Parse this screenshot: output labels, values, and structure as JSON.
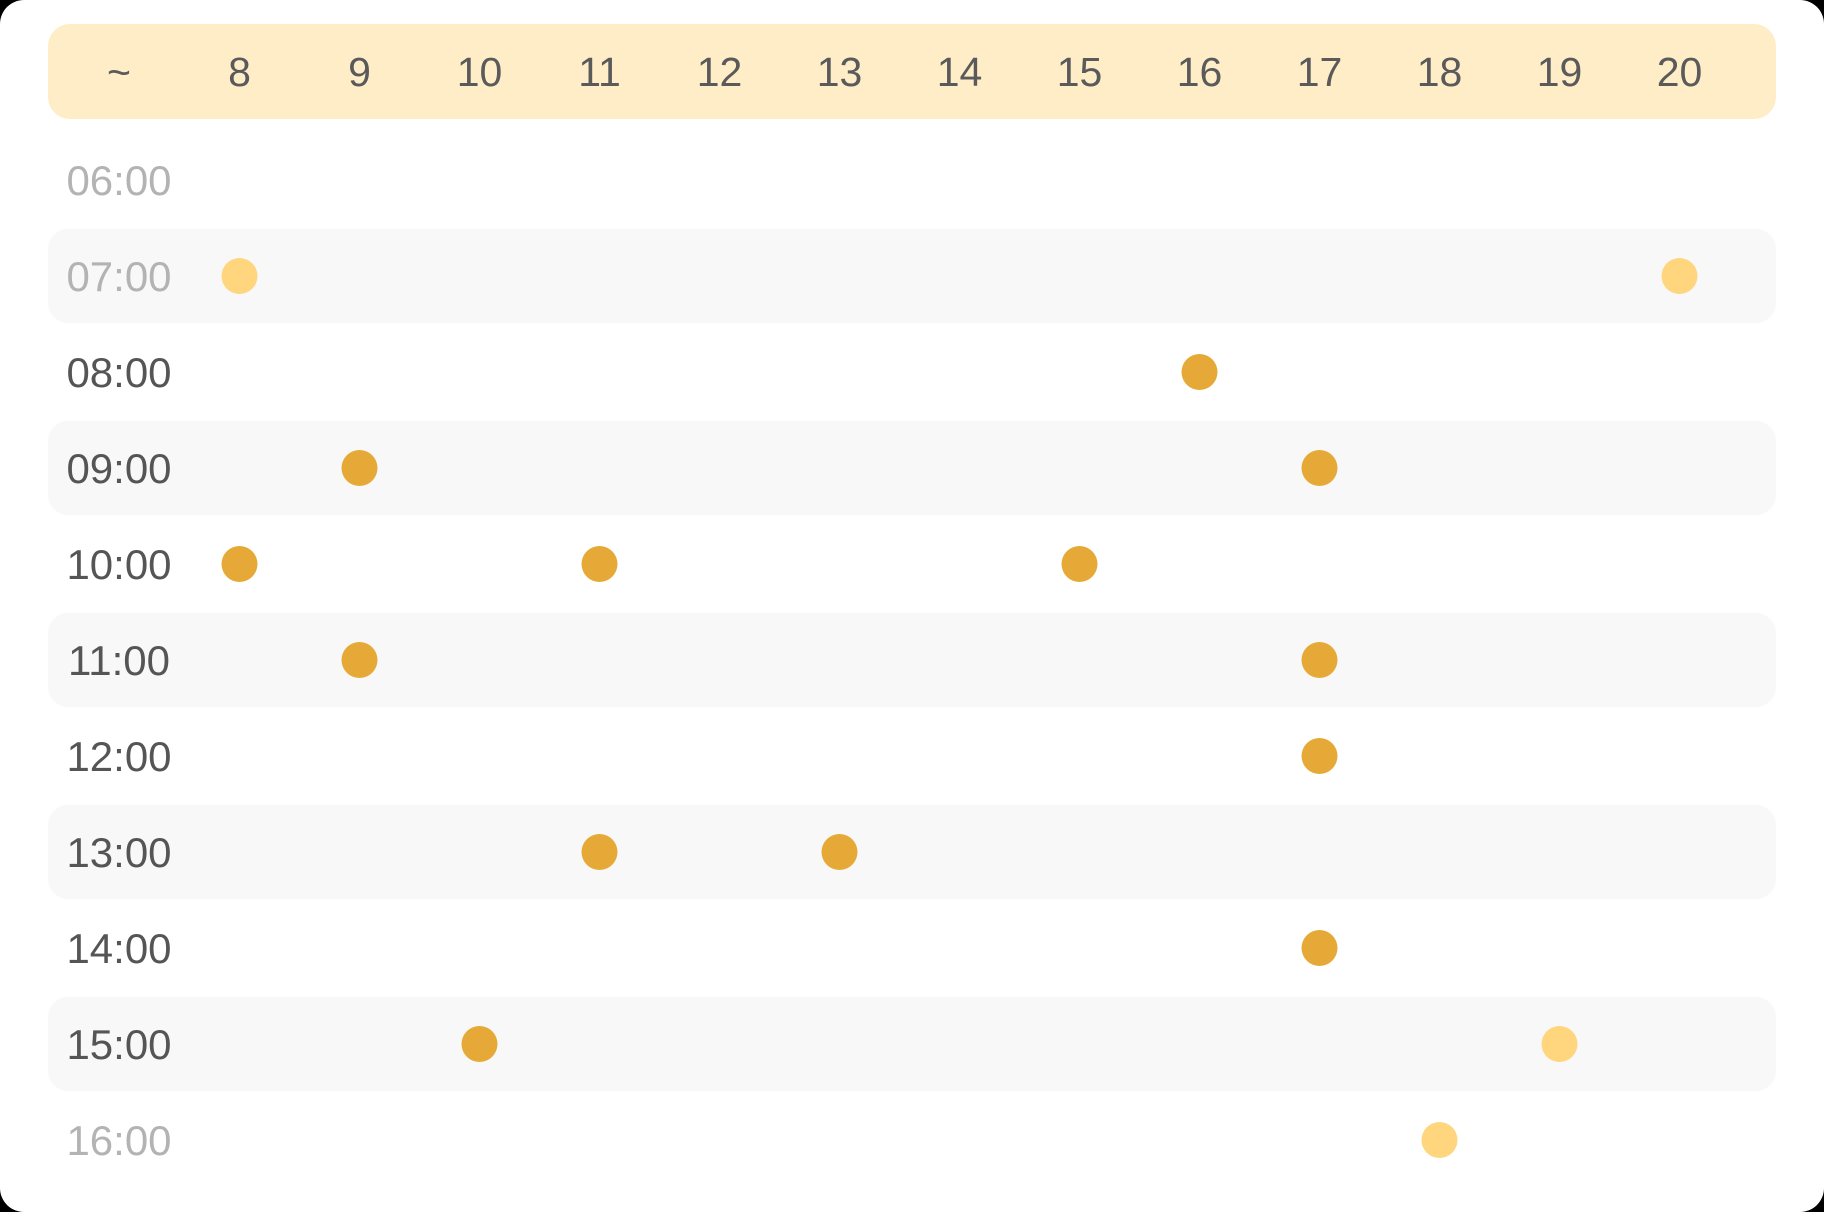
{
  "chart_data": {
    "type": "scatter",
    "corner_label": "~",
    "columns": [
      "8",
      "9",
      "10",
      "11",
      "12",
      "13",
      "14",
      "15",
      "16",
      "17",
      "18",
      "19",
      "20"
    ],
    "rows": [
      {
        "label": "06:00",
        "muted": true
      },
      {
        "label": "07:00",
        "muted": true
      },
      {
        "label": "08:00",
        "muted": false
      },
      {
        "label": "09:00",
        "muted": false
      },
      {
        "label": "10:00",
        "muted": false
      },
      {
        "label": "11:00",
        "muted": false
      },
      {
        "label": "12:00",
        "muted": false
      },
      {
        "label": "13:00",
        "muted": false
      },
      {
        "label": "14:00",
        "muted": false
      },
      {
        "label": "15:00",
        "muted": false
      },
      {
        "label": "16:00",
        "muted": true
      }
    ],
    "points": [
      {
        "x": "8",
        "y": "07:00",
        "style": "light"
      },
      {
        "x": "20",
        "y": "07:00",
        "style": "light"
      },
      {
        "x": "16",
        "y": "08:00",
        "style": "dark"
      },
      {
        "x": "9",
        "y": "09:00",
        "style": "dark"
      },
      {
        "x": "17",
        "y": "09:00",
        "style": "dark"
      },
      {
        "x": "8",
        "y": "10:00",
        "style": "dark"
      },
      {
        "x": "11",
        "y": "10:00",
        "style": "dark"
      },
      {
        "x": "15",
        "y": "10:00",
        "style": "dark"
      },
      {
        "x": "9",
        "y": "11:00",
        "style": "dark"
      },
      {
        "x": "17",
        "y": "11:00",
        "style": "dark"
      },
      {
        "x": "17",
        "y": "12:00",
        "style": "dark"
      },
      {
        "x": "11",
        "y": "13:00",
        "style": "dark"
      },
      {
        "x": "13",
        "y": "13:00",
        "style": "dark"
      },
      {
        "x": "17",
        "y": "14:00",
        "style": "dark"
      },
      {
        "x": "10",
        "y": "15:00",
        "style": "dark"
      },
      {
        "x": "19",
        "y": "15:00",
        "style": "light"
      },
      {
        "x": "18",
        "y": "16:00",
        "style": "light"
      }
    ],
    "colors": {
      "header_bg": "#FFEDC8",
      "stripe_bg": "#F8F8F8",
      "dot_dark": "#E6A937",
      "dot_light": "#FFD57E"
    },
    "grid": false
  }
}
